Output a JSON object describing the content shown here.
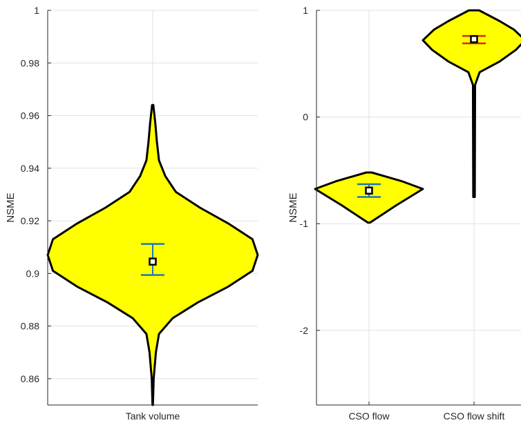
{
  "chart_data": [
    {
      "type": "violin",
      "ylabel": "NSME",
      "ylim": [
        0.85,
        1.0
      ],
      "yticks": [
        0.86,
        0.88,
        0.9,
        0.92,
        0.94,
        0.96,
        0.98,
        1
      ],
      "ytick_labels": [
        "0.86",
        "0.88",
        "0.9",
        "0.92",
        "0.94",
        "0.96",
        "0.98",
        "1"
      ],
      "grid": true,
      "categories": [
        "Tank volume"
      ],
      "violins": [
        {
          "category": "Tank volume",
          "fill_color": "#ffff00",
          "errorbar_color": "#1f77b4",
          "mean": 0.9045,
          "ci": [
            0.8994,
            0.9112
          ],
          "profile": [
            [
              0.85,
              0.002
            ],
            [
              0.86,
              0.009
            ],
            [
              0.87,
              0.03
            ],
            [
              0.877,
              0.06
            ],
            [
              0.883,
              0.19
            ],
            [
              0.889,
              0.43
            ],
            [
              0.895,
              0.72
            ],
            [
              0.901,
              0.95
            ],
            [
              0.907,
              1.0
            ],
            [
              0.913,
              0.95
            ],
            [
              0.919,
              0.72
            ],
            [
              0.925,
              0.45
            ],
            [
              0.931,
              0.22
            ],
            [
              0.937,
              0.12
            ],
            [
              0.943,
              0.06
            ],
            [
              0.95,
              0.04
            ],
            [
              0.957,
              0.025
            ],
            [
              0.964,
              0.006
            ]
          ]
        }
      ]
    },
    {
      "type": "violin",
      "ylabel": "NSME",
      "ylim": [
        -2.7,
        1.0
      ],
      "yticks": [
        -2,
        -1,
        0,
        1
      ],
      "ytick_labels": [
        "-2",
        "-1",
        "0",
        "1"
      ],
      "grid": true,
      "categories": [
        "CSO flow",
        "CSO flow shift"
      ],
      "violins": [
        {
          "category": "CSO flow",
          "fill_color": "#ffff00",
          "errorbar_color": "#1f77b4",
          "mean": -0.69,
          "ci": [
            -0.75,
            -0.63
          ],
          "profile": [
            [
              -0.99,
              0.02
            ],
            [
              -0.83,
              0.5
            ],
            [
              -0.675,
              1.0
            ],
            [
              -0.6,
              0.6
            ],
            [
              -0.52,
              0.05
            ]
          ]
        },
        {
          "category": "CSO flow shift",
          "fill_color": "#ffff00",
          "errorbar_color": "#d62728",
          "mean": 0.73,
          "ci": [
            0.69,
            0.76
          ],
          "profile": [
            [
              -0.75,
              0.015
            ],
            [
              0.2,
              0.02
            ],
            [
              0.3,
              0.02
            ],
            [
              0.42,
              0.11
            ],
            [
              0.52,
              0.5
            ],
            [
              0.63,
              0.82
            ],
            [
              0.72,
              1.0
            ],
            [
              0.82,
              0.78
            ],
            [
              0.9,
              0.5
            ],
            [
              1.0,
              0.1
            ]
          ]
        }
      ]
    }
  ]
}
